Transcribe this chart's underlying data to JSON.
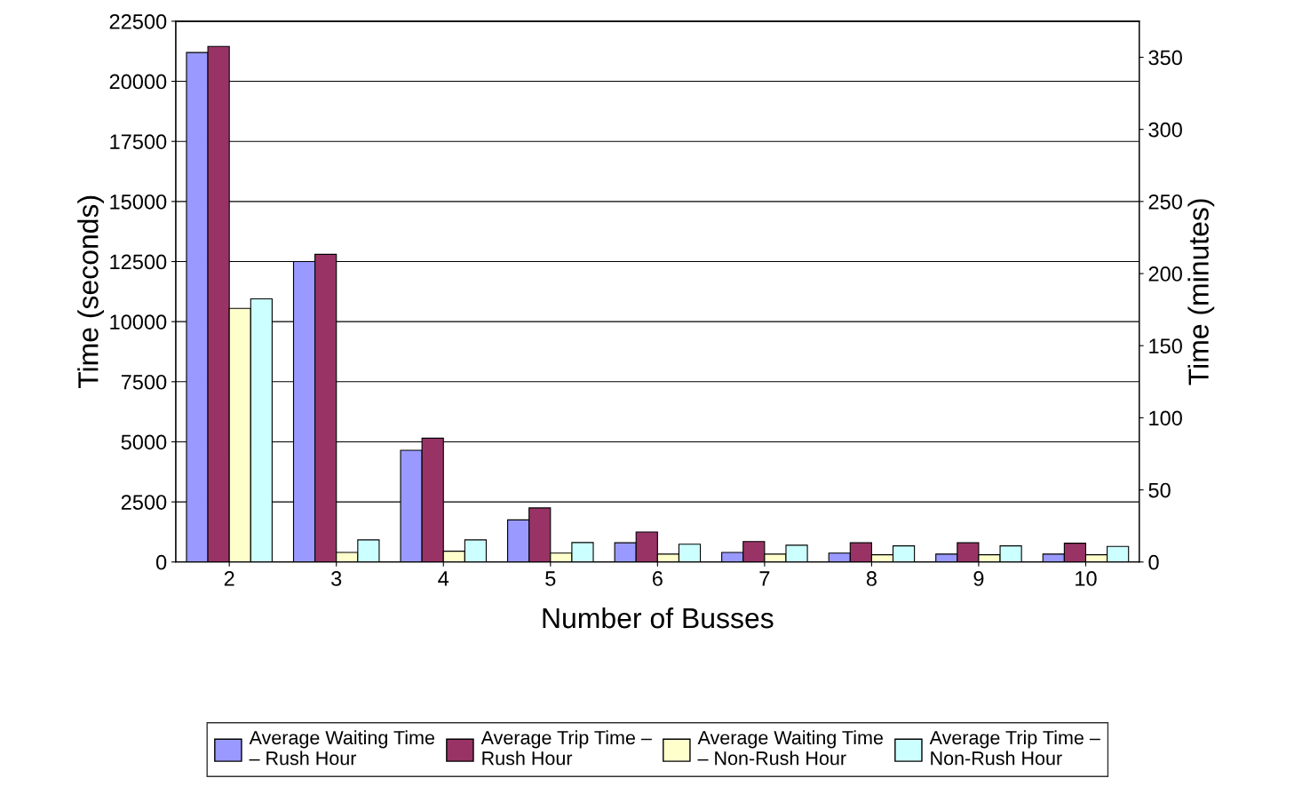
{
  "chart_data": {
    "type": "bar",
    "xlabel": "Number of Busses",
    "ylabel": "Time (seconds)",
    "y2label": "Time (minutes)",
    "categories": [
      "2",
      "3",
      "4",
      "5",
      "6",
      "7",
      "8",
      "9",
      "10"
    ],
    "series": [
      {
        "name": "Average Waiting Time\n– Rush Hour",
        "color": "#9999ff",
        "values": [
          21200,
          12500,
          4650,
          1750,
          800,
          400,
          370,
          330,
          330
        ]
      },
      {
        "name": "Average Trip Time –\nRush Hour",
        "color": "#993366",
        "values": [
          21450,
          12800,
          5150,
          2250,
          1250,
          850,
          800,
          800,
          780
        ]
      },
      {
        "name": "Average Waiting Time\n– Non-Rush Hour",
        "color": "#ffffcc",
        "values": [
          10550,
          400,
          450,
          370,
          330,
          330,
          300,
          300,
          300
        ]
      },
      {
        "name": "Average Trip Time –\nNon-Rush Hour",
        "color": "#ccffff",
        "values": [
          10950,
          920,
          920,
          810,
          740,
          700,
          670,
          670,
          650
        ]
      }
    ],
    "ylim": [
      0,
      22500
    ],
    "yticks": [
      0,
      2500,
      5000,
      7500,
      10000,
      12500,
      15000,
      17500,
      20000,
      22500
    ],
    "y2lim": [
      0,
      375
    ],
    "y2ticks": [
      0,
      50,
      100,
      150,
      200,
      250,
      300,
      350
    ],
    "grid": "y",
    "legend": "bottom"
  }
}
